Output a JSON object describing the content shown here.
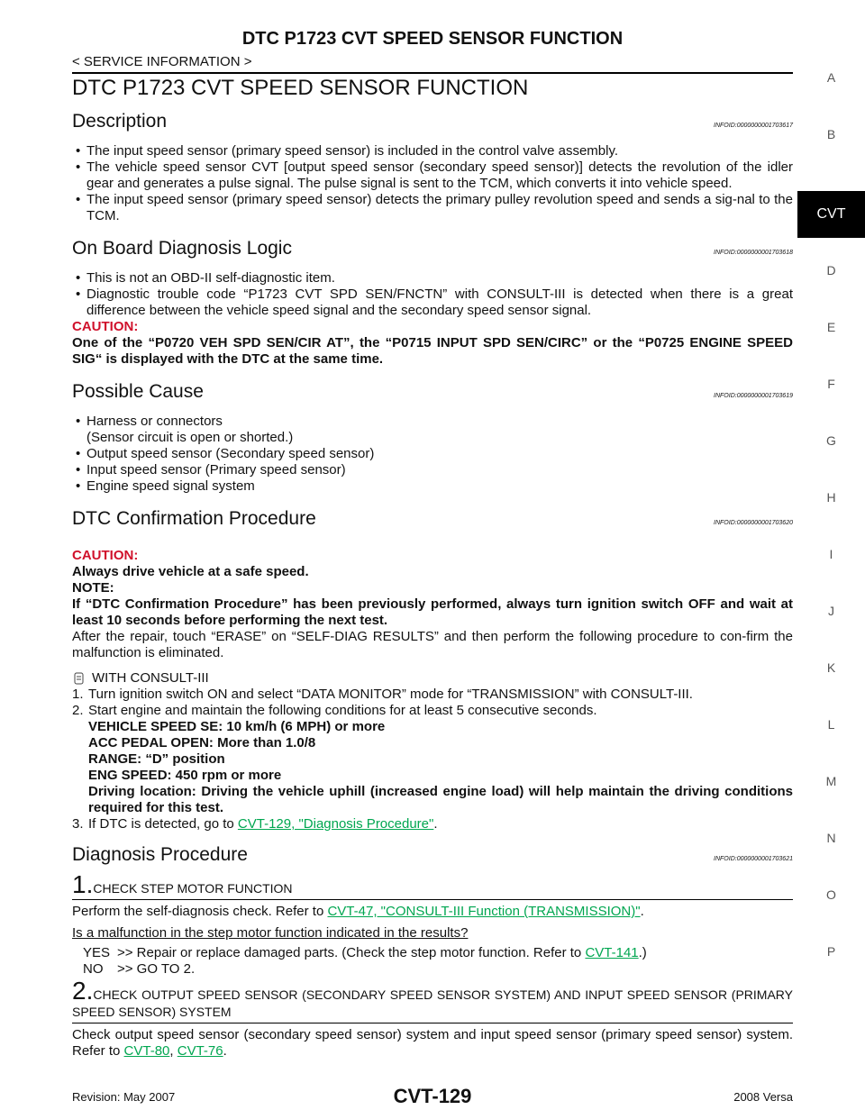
{
  "header": {
    "title": "DTC P1723 CVT SPEED SENSOR FUNCTION",
    "subtitle": "< SERVICE INFORMATION >"
  },
  "side_tabs": [
    "A",
    "B",
    "CVT",
    "D",
    "E",
    "F",
    "G",
    "H",
    "I",
    "J",
    "K",
    "L",
    "M",
    "N",
    "O",
    "P"
  ],
  "page_title": "DTC P1723 CVT SPEED SENSOR FUNCTION",
  "description": {
    "heading": "Description",
    "infoid": "INFOID:0000000001703617",
    "bullets": [
      "The input speed sensor (primary speed sensor) is included in the control valve assembly.",
      "The vehicle speed sensor CVT [output speed sensor (secondary speed sensor)] detects the revolution of the idler gear and generates a pulse signal. The pulse signal is sent to the TCM, which converts it into vehicle speed.",
      "The input speed sensor (primary speed sensor) detects the primary pulley revolution speed and sends a sig-nal to the TCM."
    ]
  },
  "obd": {
    "heading": "On Board Diagnosis Logic",
    "infoid": "INFOID:0000000001703618",
    "bullets": [
      "This is not an OBD-II self-diagnostic item.",
      "Diagnostic trouble code “P1723 CVT SPD SEN/FNCTN” with CONSULT-III is detected when there is a great difference between the vehicle speed signal and the secondary speed sensor signal."
    ],
    "caution_label": "CAUTION:",
    "caution_text": "One of the “P0720 VEH SPD SEN/CIR AT”, the “P0715 INPUT SPD SEN/CIRC” or the “P0725 ENGINE SPEED SIG“ is displayed with the DTC at the same time."
  },
  "possible_cause": {
    "heading": "Possible Cause",
    "infoid": "INFOID:0000000001703619",
    "bullets": [
      "Harness or connectors",
      "Output speed sensor (Secondary speed sensor)",
      "Input speed sensor (Primary speed sensor)",
      "Engine speed signal system"
    ],
    "first_note": "(Sensor circuit is open or shorted.)"
  },
  "dtc_confirmation": {
    "heading": "DTC Confirmation Procedure",
    "infoid": "INFOID:0000000001703620",
    "caution_label": "CAUTION:",
    "caution_text": "Always drive vehicle at a safe speed.",
    "note_label": "NOTE:",
    "note_text": "If “DTC Confirmation Procedure” has been previously performed, always turn ignition switch OFF and wait at least 10 seconds before performing the next test.",
    "intro": "After the repair, touch “ERASE” on “SELF-DIAG RESULTS” and then perform the following procedure to con-firm the malfunction is eliminated.",
    "consult_label": "WITH CONSULT-III",
    "step1_num": "1.",
    "step1_text": "Turn ignition switch ON and select “DATA MONITOR” mode for “TRANSMISSION” with CONSULT-III.",
    "step2_num": "2.",
    "step2_text": "Start engine and maintain the following conditions for at least 5 consecutive seconds.",
    "conditions": [
      "VEHICLE SPEED SE: 10 km/h (6 MPH) or more",
      "ACC PEDAL OPEN: More than 1.0/8",
      "RANGE: “D” position",
      "ENG SPEED: 450 rpm or more",
      "Driving location: Driving the vehicle uphill (increased engine load) will help maintain the driving conditions required for this test."
    ],
    "step3_num": "3.",
    "step3_before": "If DTC is detected, go to ",
    "step3_link": "CVT-129, \"Diagnosis Procedure\"",
    "step3_after": "."
  },
  "diagnosis": {
    "heading": "Diagnosis Procedure",
    "infoid": "INFOID:0000000001703621",
    "step1": {
      "num": "1.",
      "title": "CHECK STEP MOTOR FUNCTION",
      "before": "Perform the self-diagnosis check. Refer to ",
      "link": "CVT-47, \"CONSULT-III Function (TRANSMISSION)\"",
      "after": ".",
      "question": "Is a malfunction in the step motor function indicated in the results?",
      "yes_label": "YES",
      "yes_text": ">> Repair or replace damaged parts. (Check the step motor function. Refer to ",
      "yes_link": "CVT-141",
      "yes_after": ".)",
      "no_label": "NO",
      "no_text": ">> GO TO 2."
    },
    "step2": {
      "num": "2.",
      "title": "CHECK OUTPUT SPEED SENSOR (SECONDARY SPEED SENSOR SYSTEM) AND INPUT SPEED SENSOR (PRIMARY SPEED SENSOR) SYSTEM",
      "before": "Check output speed sensor (secondary speed sensor) system and input speed sensor (primary speed sensor) system. Refer to ",
      "link1": "CVT-80",
      "sep": ", ",
      "link2": "CVT-76",
      "after": "."
    }
  },
  "footer": {
    "revision": "Revision: May 2007",
    "page": "CVT-129",
    "model": "2008 Versa"
  }
}
